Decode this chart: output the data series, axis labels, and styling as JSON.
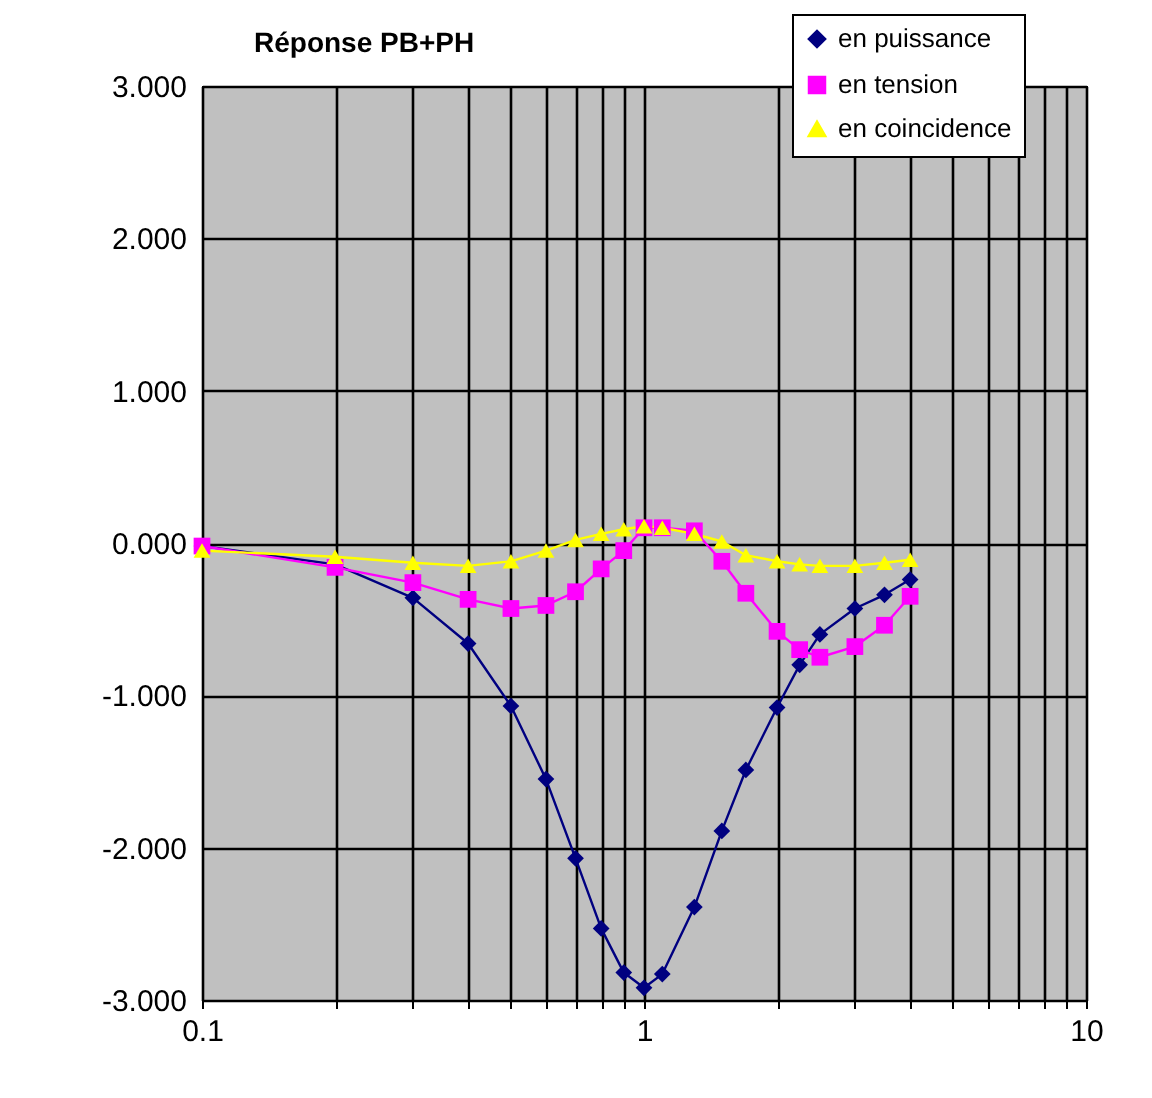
{
  "chart_data": {
    "type": "line",
    "title": "Réponse PB+PH",
    "x": [
      0.1,
      0.2,
      0.3,
      0.4,
      0.5,
      0.6,
      0.7,
      0.8,
      0.9,
      1,
      1.1,
      1.3,
      1.5,
      1.7,
      2,
      2.25,
      2.5,
      3,
      3.5,
      4
    ],
    "series": [
      {
        "name": "en puissance",
        "color": "#000080",
        "marker": "diamond",
        "values": [
          -0.02,
          -0.14,
          -0.36,
          -0.66,
          -1.07,
          -1.55,
          -2.07,
          -2.53,
          -2.82,
          -2.92,
          -2.83,
          -2.39,
          -1.89,
          -1.49,
          -1.08,
          -0.8,
          -0.6,
          -0.43,
          -0.34,
          -0.24
        ]
      },
      {
        "name": "en tension",
        "color": "#ff00ff",
        "marker": "square",
        "values": [
          -0.02,
          -0.16,
          -0.26,
          -0.37,
          -0.43,
          -0.41,
          -0.32,
          -0.17,
          -0.05,
          0.1,
          0.1,
          0.08,
          -0.12,
          -0.33,
          -0.58,
          -0.7,
          -0.75,
          -0.68,
          -0.54,
          -0.35
        ]
      },
      {
        "name": "en coincidence",
        "color": "#ffff00",
        "marker": "triangle",
        "values": [
          -0.05,
          -0.09,
          -0.13,
          -0.15,
          -0.12,
          -0.05,
          0.02,
          0.06,
          0.09,
          0.11,
          0.1,
          0.06,
          0.01,
          -0.08,
          -0.12,
          -0.14,
          -0.15,
          -0.15,
          -0.13,
          -0.11
        ]
      }
    ],
    "log": "x",
    "xlim": [
      0.1,
      10
    ],
    "xticks": [
      0.1,
      {
        "value": 0.2,
        "label": null
      },
      {
        "value": 0.3,
        "label": null
      },
      {
        "value": 0.4,
        "label": null
      },
      {
        "value": 0.5,
        "label": null
      },
      {
        "value": 0.6,
        "label": null
      },
      {
        "value": 0.7,
        "label": null
      },
      {
        "value": 0.8,
        "label": null
      },
      {
        "value": 0.9,
        "label": null
      },
      1,
      {
        "value": 2,
        "label": null
      },
      {
        "value": 3,
        "label": null
      },
      {
        "value": 4,
        "label": null
      },
      {
        "value": 5,
        "label": null
      },
      {
        "value": 6,
        "label": null
      },
      {
        "value": 7,
        "label": null
      },
      {
        "value": 8,
        "label": null
      },
      {
        "value": 9,
        "label": null
      },
      10
    ],
    "ylim": [
      -3,
      3
    ],
    "yticks": [
      {
        "value": -3,
        "label": "-3.000"
      },
      {
        "value": -2,
        "label": "-2.000"
      },
      {
        "value": -1,
        "label": "-1.000"
      },
      {
        "value": 0,
        "label": "0.000"
      },
      {
        "value": 1,
        "label": "1.000"
      },
      {
        "value": 2,
        "label": "2.000"
      },
      {
        "value": 3,
        "label": "3.000"
      }
    ],
    "grid": true,
    "legend": "top right"
  }
}
